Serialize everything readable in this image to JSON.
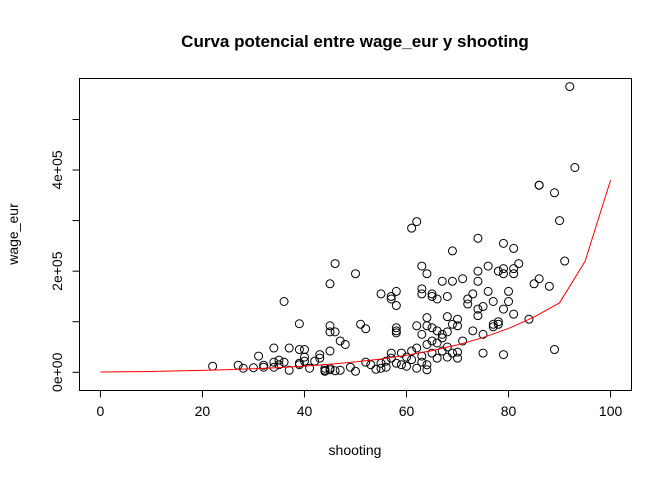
{
  "chart_data": {
    "type": "scatter",
    "title": "Curva potencial entre wage_eur y shooting",
    "xlabel": "shooting",
    "ylabel": "wage_eur",
    "xlim": [
      -4,
      104
    ],
    "ylim": [
      -35000,
      580000
    ],
    "x_ticks": [
      0,
      20,
      40,
      60,
      80,
      100
    ],
    "x_tick_labels": [
      "0",
      "20",
      "40",
      "60",
      "80",
      "100"
    ],
    "y_ticks": [
      0,
      100000,
      200000,
      300000,
      400000,
      500000
    ],
    "y_tick_labels": [
      "0e+00",
      "",
      "2e+05",
      "",
      "4e+05",
      ""
    ],
    "grid": false,
    "legend": "none",
    "colors": {
      "points": "#000000",
      "curve": "#ff0000"
    },
    "fit_curve": {
      "label": "",
      "x": [
        0,
        5,
        10,
        15,
        20,
        25,
        30,
        35,
        40,
        45,
        50,
        55,
        60,
        65,
        70,
        75,
        80,
        85,
        90,
        95,
        100
      ],
      "y": [
        500,
        1000,
        1700,
        2700,
        3800,
        5200,
        7000,
        9300,
        12200,
        15900,
        20500,
        26300,
        33600,
        42800,
        54300,
        68700,
        86700,
        109200,
        137400,
        219600,
        380000
      ]
    },
    "points": [
      {
        "x": 22,
        "y": 12000
      },
      {
        "x": 27,
        "y": 14000
      },
      {
        "x": 28,
        "y": 8000
      },
      {
        "x": 30,
        "y": 9000
      },
      {
        "x": 31,
        "y": 32000
      },
      {
        "x": 32,
        "y": 10000
      },
      {
        "x": 32,
        "y": 14000
      },
      {
        "x": 34,
        "y": 48000
      },
      {
        "x": 34,
        "y": 20000
      },
      {
        "x": 34,
        "y": 10000
      },
      {
        "x": 35,
        "y": 15000
      },
      {
        "x": 35,
        "y": 24000
      },
      {
        "x": 36,
        "y": 140000
      },
      {
        "x": 36,
        "y": 20000
      },
      {
        "x": 37,
        "y": 48000
      },
      {
        "x": 37,
        "y": 4000
      },
      {
        "x": 39,
        "y": 96000
      },
      {
        "x": 39,
        "y": 45000
      },
      {
        "x": 39,
        "y": 15000
      },
      {
        "x": 39,
        "y": 18000
      },
      {
        "x": 40,
        "y": 45000
      },
      {
        "x": 40,
        "y": 30000
      },
      {
        "x": 40,
        "y": 22000
      },
      {
        "x": 41,
        "y": 8000
      },
      {
        "x": 42,
        "y": 22000
      },
      {
        "x": 43,
        "y": 35000
      },
      {
        "x": 43,
        "y": 28000
      },
      {
        "x": 44,
        "y": 8000
      },
      {
        "x": 44,
        "y": 4000
      },
      {
        "x": 44,
        "y": 2000
      },
      {
        "x": 45,
        "y": 175000
      },
      {
        "x": 45,
        "y": 92000
      },
      {
        "x": 45,
        "y": 80000
      },
      {
        "x": 45,
        "y": 42000
      },
      {
        "x": 45,
        "y": 8000
      },
      {
        "x": 45,
        "y": 5000
      },
      {
        "x": 46,
        "y": 215000
      },
      {
        "x": 46,
        "y": 80000
      },
      {
        "x": 46,
        "y": 3000
      },
      {
        "x": 47,
        "y": 62000
      },
      {
        "x": 47,
        "y": 4000
      },
      {
        "x": 48,
        "y": 55000
      },
      {
        "x": 49,
        "y": 10000
      },
      {
        "x": 50,
        "y": 195000
      },
      {
        "x": 50,
        "y": 2000
      },
      {
        "x": 51,
        "y": 95000
      },
      {
        "x": 52,
        "y": 86000
      },
      {
        "x": 52,
        "y": 20000
      },
      {
        "x": 53,
        "y": 15000
      },
      {
        "x": 54,
        "y": 6000
      },
      {
        "x": 55,
        "y": 155000
      },
      {
        "x": 55,
        "y": 8000
      },
      {
        "x": 55,
        "y": 18000
      },
      {
        "x": 56,
        "y": 22000
      },
      {
        "x": 56,
        "y": 10000
      },
      {
        "x": 57,
        "y": 150000
      },
      {
        "x": 57,
        "y": 145000
      },
      {
        "x": 57,
        "y": 38000
      },
      {
        "x": 57,
        "y": 28000
      },
      {
        "x": 58,
        "y": 160000
      },
      {
        "x": 58,
        "y": 132000
      },
      {
        "x": 58,
        "y": 88000
      },
      {
        "x": 58,
        "y": 82000
      },
      {
        "x": 58,
        "y": 78000
      },
      {
        "x": 58,
        "y": 18000
      },
      {
        "x": 59,
        "y": 38000
      },
      {
        "x": 59,
        "y": 15000
      },
      {
        "x": 60,
        "y": 12000
      },
      {
        "x": 60,
        "y": 30000
      },
      {
        "x": 61,
        "y": 285000
      },
      {
        "x": 61,
        "y": 42000
      },
      {
        "x": 61,
        "y": 25000
      },
      {
        "x": 62,
        "y": 298000
      },
      {
        "x": 62,
        "y": 92000
      },
      {
        "x": 62,
        "y": 48000
      },
      {
        "x": 62,
        "y": 8000
      },
      {
        "x": 63,
        "y": 210000
      },
      {
        "x": 63,
        "y": 165000
      },
      {
        "x": 63,
        "y": 155000
      },
      {
        "x": 63,
        "y": 75000
      },
      {
        "x": 63,
        "y": 32000
      },
      {
        "x": 63,
        "y": 20000
      },
      {
        "x": 64,
        "y": 195000
      },
      {
        "x": 64,
        "y": 108000
      },
      {
        "x": 64,
        "y": 92000
      },
      {
        "x": 64,
        "y": 55000
      },
      {
        "x": 64,
        "y": 15000
      },
      {
        "x": 64,
        "y": 5000
      },
      {
        "x": 65,
        "y": 155000
      },
      {
        "x": 65,
        "y": 150000
      },
      {
        "x": 65,
        "y": 88000
      },
      {
        "x": 65,
        "y": 62000
      },
      {
        "x": 65,
        "y": 38000
      },
      {
        "x": 66,
        "y": 145000
      },
      {
        "x": 66,
        "y": 82000
      },
      {
        "x": 66,
        "y": 58000
      },
      {
        "x": 66,
        "y": 28000
      },
      {
        "x": 67,
        "y": 180000
      },
      {
        "x": 67,
        "y": 75000
      },
      {
        "x": 67,
        "y": 68000
      },
      {
        "x": 67,
        "y": 42000
      },
      {
        "x": 68,
        "y": 150000
      },
      {
        "x": 68,
        "y": 110000
      },
      {
        "x": 68,
        "y": 80000
      },
      {
        "x": 68,
        "y": 50000
      },
      {
        "x": 68,
        "y": 30000
      },
      {
        "x": 69,
        "y": 240000
      },
      {
        "x": 69,
        "y": 180000
      },
      {
        "x": 69,
        "y": 95000
      },
      {
        "x": 69,
        "y": 38000
      },
      {
        "x": 70,
        "y": 105000
      },
      {
        "x": 70,
        "y": 92000
      },
      {
        "x": 70,
        "y": 40000
      },
      {
        "x": 70,
        "y": 28000
      },
      {
        "x": 71,
        "y": 185000
      },
      {
        "x": 71,
        "y": 62000
      },
      {
        "x": 72,
        "y": 135000
      },
      {
        "x": 72,
        "y": 145000
      },
      {
        "x": 73,
        "y": 155000
      },
      {
        "x": 73,
        "y": 82000
      },
      {
        "x": 74,
        "y": 265000
      },
      {
        "x": 74,
        "y": 200000
      },
      {
        "x": 74,
        "y": 180000
      },
      {
        "x": 74,
        "y": 125000
      },
      {
        "x": 74,
        "y": 112000
      },
      {
        "x": 75,
        "y": 130000
      },
      {
        "x": 75,
        "y": 38000
      },
      {
        "x": 75,
        "y": 75000
      },
      {
        "x": 76,
        "y": 210000
      },
      {
        "x": 76,
        "y": 160000
      },
      {
        "x": 77,
        "y": 140000
      },
      {
        "x": 77,
        "y": 90000
      },
      {
        "x": 77,
        "y": 95000
      },
      {
        "x": 78,
        "y": 200000
      },
      {
        "x": 78,
        "y": 100000
      },
      {
        "x": 78,
        "y": 95000
      },
      {
        "x": 79,
        "y": 255000
      },
      {
        "x": 79,
        "y": 205000
      },
      {
        "x": 79,
        "y": 195000
      },
      {
        "x": 79,
        "y": 125000
      },
      {
        "x": 79,
        "y": 35000
      },
      {
        "x": 80,
        "y": 160000
      },
      {
        "x": 80,
        "y": 140000
      },
      {
        "x": 81,
        "y": 245000
      },
      {
        "x": 81,
        "y": 205000
      },
      {
        "x": 81,
        "y": 195000
      },
      {
        "x": 81,
        "y": 115000
      },
      {
        "x": 82,
        "y": 215000
      },
      {
        "x": 84,
        "y": 105000
      },
      {
        "x": 85,
        "y": 175000
      },
      {
        "x": 86,
        "y": 370000
      },
      {
        "x": 86,
        "y": 370000
      },
      {
        "x": 86,
        "y": 185000
      },
      {
        "x": 88,
        "y": 170000
      },
      {
        "x": 89,
        "y": 355000
      },
      {
        "x": 89,
        "y": 45000
      },
      {
        "x": 90,
        "y": 300000
      },
      {
        "x": 91,
        "y": 220000
      },
      {
        "x": 92,
        "y": 565000
      },
      {
        "x": 93,
        "y": 405000
      }
    ]
  }
}
